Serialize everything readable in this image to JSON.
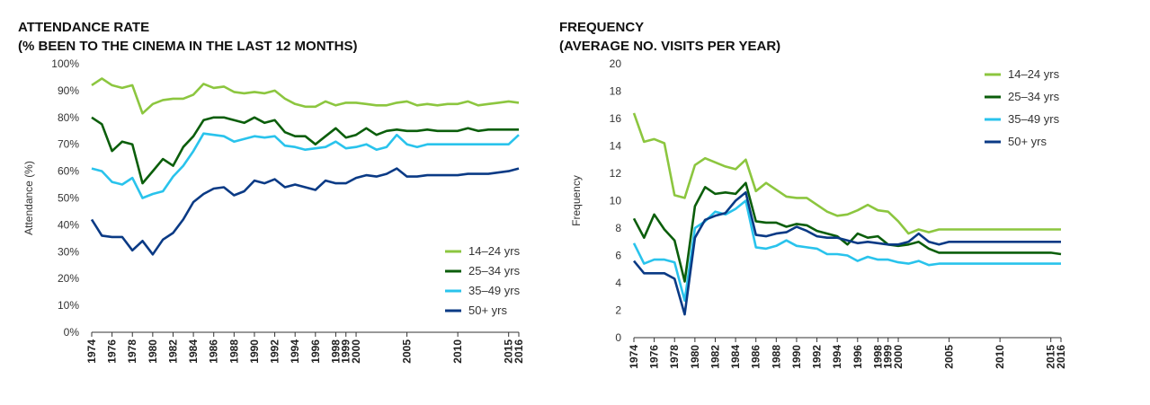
{
  "chart_data": [
    {
      "type": "line",
      "title": "ATTENDANCE RATE",
      "subtitle": "(% BEEN TO THE CINEMA IN THE LAST 12 MONTHS)",
      "ylabel": "Attendance (%)",
      "xlabel": "",
      "ylim": [
        0,
        100
      ],
      "yticks": [
        "0%",
        "10%",
        "20%",
        "30%",
        "40%",
        "50%",
        "60%",
        "70%",
        "80%",
        "90%",
        "100%"
      ],
      "xticks": [
        "1974",
        "1976",
        "1978",
        "1980",
        "1982",
        "1984",
        "1986",
        "1988",
        "1990",
        "1992",
        "1994",
        "1996",
        "1998",
        "1999",
        "2000",
        "2005",
        "2010",
        "2015",
        "2016"
      ],
      "legend": "bottom-right",
      "grid": false,
      "x": [
        1974,
        1975,
        1976,
        1977,
        1978,
        1979,
        1980,
        1981,
        1982,
        1983,
        1984,
        1985,
        1986,
        1987,
        1988,
        1989,
        1990,
        1991,
        1992,
        1993,
        1994,
        1995,
        1996,
        1997,
        1998,
        1999,
        2000,
        2001,
        2002,
        2003,
        2004,
        2005,
        2006,
        2007,
        2008,
        2009,
        2010,
        2011,
        2012,
        2013,
        2014,
        2015,
        2016
      ],
      "series": [
        {
          "name": "14–24 yrs",
          "color": "#8cc63f",
          "values": [
            92,
            94.5,
            92,
            91,
            92,
            81.5,
            85,
            86.5,
            87,
            87,
            88.5,
            92.5,
            91,
            91.5,
            89.5,
            89,
            89.5,
            89,
            90,
            87,
            85,
            84,
            84,
            86,
            84.5,
            85.5,
            85.5,
            85,
            84.5,
            84.5,
            85.5,
            86,
            84.5,
            85,
            84.5,
            85,
            85,
            86,
            84.5,
            85,
            85.5,
            86,
            85.5
          ]
        },
        {
          "name": "25–34 yrs",
          "color": "#0b5e0b",
          "values": [
            80,
            77.5,
            67.5,
            71,
            70,
            55.5,
            60,
            64.5,
            62,
            69,
            73,
            79,
            80,
            80,
            79,
            78,
            80,
            78,
            79,
            74.5,
            73,
            73,
            70,
            73,
            76,
            72.5,
            73.5,
            76,
            73.5,
            75,
            75.5,
            75,
            75,
            75.5,
            75,
            75,
            75,
            76,
            75,
            75.5,
            75.5,
            75.5,
            75.5
          ]
        },
        {
          "name": "35–49 yrs",
          "color": "#29c3ec",
          "values": [
            61,
            60,
            56,
            55,
            57.5,
            50,
            51.5,
            52.5,
            58,
            62,
            67.5,
            74,
            73.5,
            73,
            71,
            72,
            73,
            72.5,
            73,
            69.5,
            69,
            68,
            68.5,
            69,
            71,
            68.5,
            69,
            70,
            68,
            69,
            73.5,
            70,
            69,
            70,
            70,
            70,
            70,
            70,
            70,
            70,
            70,
            70,
            73.5
          ]
        },
        {
          "name": "50+ yrs",
          "color": "#0a3a85",
          "values": [
            42,
            36,
            35.5,
            35.5,
            30.5,
            34,
            29,
            34.5,
            37,
            42,
            48.5,
            51.5,
            53.5,
            54,
            51,
            52.5,
            56.5,
            55.5,
            57,
            54,
            55,
            54,
            53,
            56.5,
            55.5,
            55.5,
            57.5,
            58.5,
            58,
            59,
            61,
            58,
            58,
            58.5,
            58.5,
            58.5,
            58.5,
            59,
            59,
            59,
            59.5,
            60,
            61
          ]
        }
      ]
    },
    {
      "type": "line",
      "title": "FREQUENCY",
      "subtitle": "(AVERAGE NO. VISITS PER YEAR)",
      "ylabel": "Frequency",
      "xlabel": "",
      "ylim": [
        0,
        20
      ],
      "yticks": [
        "0",
        "2",
        "4",
        "6",
        "8",
        "10",
        "12",
        "14",
        "16",
        "18",
        "20"
      ],
      "xticks": [
        "1974",
        "1976",
        "1978",
        "1980",
        "1982",
        "1984",
        "1986",
        "1988",
        "1990",
        "1992",
        "1994",
        "1996",
        "1998",
        "1999",
        "2000",
        "2005",
        "2010",
        "2015",
        "2016"
      ],
      "legend": "top-right",
      "grid": false,
      "x": [
        1974,
        1975,
        1976,
        1977,
        1978,
        1979,
        1980,
        1981,
        1982,
        1983,
        1984,
        1985,
        1986,
        1987,
        1988,
        1989,
        1990,
        1991,
        1992,
        1993,
        1994,
        1995,
        1996,
        1997,
        1998,
        1999,
        2000,
        2001,
        2002,
        2003,
        2004,
        2005,
        2006,
        2007,
        2008,
        2009,
        2010,
        2011,
        2012,
        2013,
        2014,
        2015,
        2016
      ],
      "series": [
        {
          "name": "14–24 yrs",
          "color": "#8cc63f",
          "values": [
            16.4,
            14.3,
            14.5,
            14.2,
            10.4,
            10.2,
            12.6,
            13.1,
            12.8,
            12.5,
            12.3,
            13.0,
            10.7,
            11.3,
            10.8,
            10.3,
            10.2,
            10.2,
            9.7,
            9.2,
            8.9,
            9.0,
            9.3,
            9.7,
            9.3,
            9.2,
            8.5,
            7.6,
            7.9,
            7.7,
            7.9,
            7.9,
            7.9,
            7.9,
            7.9,
            7.9,
            7.9,
            7.9,
            7.9,
            7.9,
            7.9,
            7.9,
            7.9
          ]
        },
        {
          "name": "25–34 yrs",
          "color": "#0b5e0b",
          "values": [
            8.7,
            7.3,
            9.0,
            7.9,
            7.1,
            4.1,
            9.6,
            11.0,
            10.5,
            10.6,
            10.5,
            11.3,
            8.5,
            8.4,
            8.4,
            8.1,
            8.3,
            8.2,
            7.8,
            7.6,
            7.4,
            6.8,
            7.6,
            7.3,
            7.4,
            6.8,
            6.7,
            6.8,
            7.0,
            6.5,
            6.2,
            6.2,
            6.2,
            6.2,
            6.2,
            6.2,
            6.2,
            6.2,
            6.2,
            6.2,
            6.2,
            6.2,
            6.1
          ]
        },
        {
          "name": "35–49 yrs",
          "color": "#29c3ec",
          "values": [
            6.9,
            5.4,
            5.7,
            5.7,
            5.5,
            2.7,
            8.0,
            8.5,
            9.2,
            9.0,
            9.4,
            10.0,
            6.6,
            6.5,
            6.7,
            7.1,
            6.7,
            6.6,
            6.5,
            6.1,
            6.1,
            6.0,
            5.6,
            5.9,
            5.7,
            5.7,
            5.5,
            5.4,
            5.6,
            5.3,
            5.4,
            5.4,
            5.4,
            5.4,
            5.4,
            5.4,
            5.4,
            5.4,
            5.4,
            5.4,
            5.4,
            5.4,
            5.4
          ]
        },
        {
          "name": "50+ yrs",
          "color": "#0a3a85",
          "values": [
            5.6,
            4.7,
            4.7,
            4.7,
            4.3,
            1.7,
            7.3,
            8.6,
            8.9,
            9.1,
            10.0,
            10.6,
            7.5,
            7.4,
            7.6,
            7.7,
            8.1,
            7.8,
            7.4,
            7.3,
            7.3,
            7.1,
            6.9,
            7.0,
            6.9,
            6.8,
            6.8,
            7.0,
            7.6,
            7.0,
            6.8,
            7.0,
            7.0,
            7.0,
            7.0,
            7.0,
            7.0,
            7.0,
            7.0,
            7.0,
            7.0,
            7.0,
            7.0
          ]
        }
      ]
    }
  ]
}
